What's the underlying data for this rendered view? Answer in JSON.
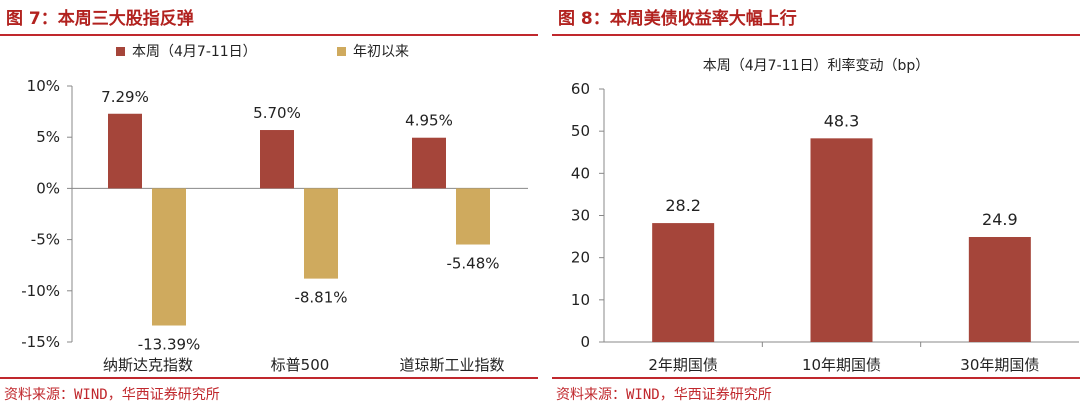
{
  "charts": [
    {
      "fig_title": "图 7：本周三大股指反弹",
      "source": "资料来源：WIND，华西证券研究所",
      "colors": {
        "series1": "#a5453a",
        "series2": "#cfaa5e"
      },
      "chart_data": {
        "type": "bar",
        "title": "",
        "categories": [
          "纳斯达克指数",
          "标普500",
          "道琼斯工业指数"
        ],
        "series": [
          {
            "name": "本周（4月7-11日）",
            "values": [
              7.29,
              5.7,
              4.95
            ],
            "labels": [
              "7.29%",
              "5.70%",
              "4.95%"
            ]
          },
          {
            "name": "年初以来",
            "values": [
              -13.39,
              -8.81,
              -5.48
            ],
            "labels": [
              "-13.39%",
              "-8.81%",
              "-5.48%"
            ]
          }
        ],
        "ylim": [
          -15,
          10
        ],
        "yticks": [
          10,
          5,
          0,
          -5,
          -10,
          -15
        ],
        "ytick_labels": [
          "10%",
          "5%",
          "0%",
          "-5%",
          "-10%",
          "-15%"
        ],
        "legend": "top-center",
        "grid": false
      }
    },
    {
      "fig_title": "图 8：本周美债收益率大幅上行",
      "source": "资料来源：WIND，华西证券研究所",
      "colors": {
        "series1": "#a5453a"
      },
      "chart_data": {
        "type": "bar",
        "title": "本周（4月7-11日）利率变动（bp）",
        "categories": [
          "2年期国债",
          "10年期国债",
          "30年期国债"
        ],
        "series": [
          {
            "values": [
              28.2,
              48.3,
              24.9
            ],
            "labels": [
              "28.2",
              "48.3",
              "24.9"
            ]
          }
        ],
        "ylim": [
          0,
          60
        ],
        "yticks": [
          60,
          50,
          40,
          30,
          20,
          10,
          0
        ],
        "ytick_labels": [
          "60",
          "50",
          "40",
          "30",
          "20",
          "10",
          "0"
        ],
        "grid": false
      }
    }
  ]
}
